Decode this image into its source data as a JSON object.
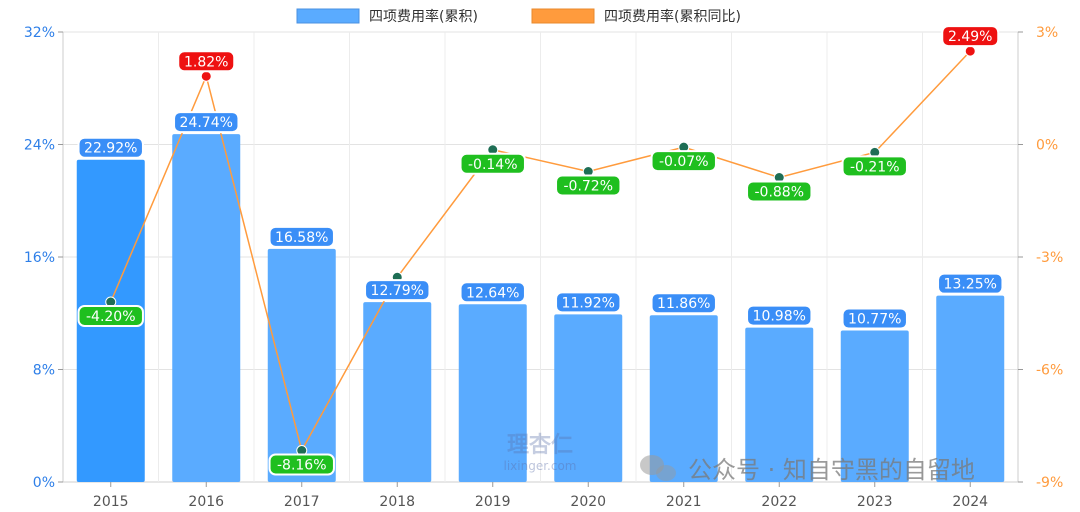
{
  "chart_data": {
    "type": "bar",
    "categories": [
      "2015",
      "2016",
      "2017",
      "2018",
      "2019",
      "2020",
      "2021",
      "2022",
      "2023",
      "2024"
    ],
    "series": [
      {
        "name": "四项费用率(累积)",
        "type": "bar",
        "axis": "left",
        "values": [
          22.92,
          24.74,
          16.58,
          12.79,
          12.64,
          11.92,
          11.86,
          10.98,
          10.77,
          13.25
        ],
        "labels": [
          "22.92%",
          "24.74%",
          "16.58%",
          "12.79%",
          "12.64%",
          "11.92%",
          "11.86%",
          "10.98%",
          "10.77%",
          "13.25%"
        ],
        "color": "#5aabff",
        "highlight_color": "#3399ff"
      },
      {
        "name": "四项费用率(累积同比)",
        "type": "line",
        "axis": "right",
        "values": [
          -4.2,
          1.82,
          -8.16,
          -3.54,
          -0.14,
          -0.72,
          -0.07,
          -0.88,
          -0.21,
          2.49
        ],
        "labels": [
          "-4.20%",
          "1.82%",
          "-8.16%",
          "",
          "-0.14%",
          "-0.72%",
          "-0.07%",
          "-0.88%",
          "-0.21%",
          "2.49%"
        ],
        "color": "#ff9b3d"
      }
    ],
    "left_axis": {
      "ticks": [
        "0%",
        "8%",
        "16%",
        "24%",
        "32%"
      ],
      "min": 0,
      "max": 32
    },
    "right_axis": {
      "ticks": [
        "-9%",
        "-6%",
        "-3%",
        "0%",
        "3%"
      ],
      "min": -9,
      "max": 3
    },
    "grid": true,
    "legend_position": "top-center",
    "colors": {
      "positive_label": "#ee1111",
      "negative_label": "#1fbf1f",
      "bar_label": "#3a8ef7",
      "right_axis": "#ff9b3d",
      "left_axis": "#2e7fe8",
      "dot_negative": "#1e6e55",
      "dot_positive": "#ee1111"
    }
  },
  "watermark": {
    "logo_text": "理杏仁",
    "logo_url_text": "lixinger.com",
    "wechat_text": "公众号 · 知自守黑的自留地"
  }
}
